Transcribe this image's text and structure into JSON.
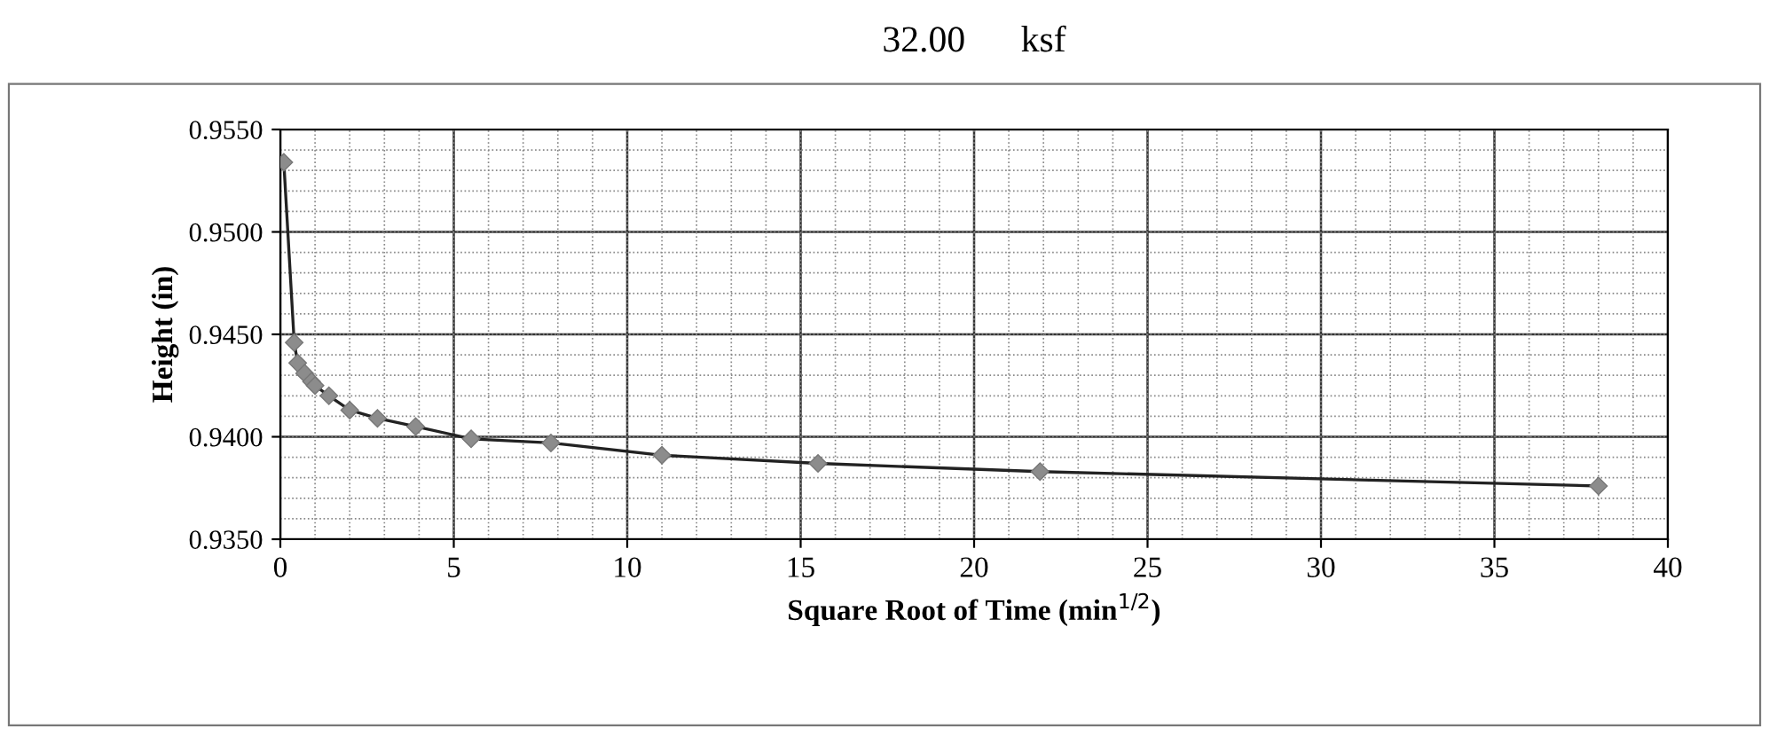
{
  "chart_data": {
    "type": "line",
    "title": "32.00      ksf",
    "xlabel": "Square Root of Time (min$^{1/2}$)",
    "ylabel": "Height (in)",
    "x": [
      0.1,
      0.4,
      0.5,
      0.7,
      0.9,
      1.0,
      1.4,
      2.0,
      2.8,
      3.9,
      5.5,
      7.8,
      11.0,
      15.5,
      21.9,
      38.0
    ],
    "series": [
      {
        "color": "#8c8c8c",
        "values": [
          0.9534,
          0.9446,
          0.9436,
          0.9431,
          0.9427,
          0.9425,
          0.942,
          0.9413,
          0.9409,
          0.9405,
          0.9399,
          0.9397,
          0.9391,
          0.9387,
          0.9383,
          0.9376
        ]
      }
    ],
    "xlim": [
      0,
      40
    ],
    "xticks": [
      0,
      5,
      10,
      15,
      20,
      25,
      30,
      35,
      40
    ],
    "ylim": [
      0.935,
      0.955
    ],
    "yticks": [
      {
        "value": 0.935,
        "label": "0.9350"
      },
      {
        "value": 0.94,
        "label": "0.9400"
      },
      {
        "value": 0.945,
        "label": "0.9450"
      },
      {
        "value": 0.95,
        "label": "0.9500"
      },
      {
        "value": 0.955,
        "label": "0.9550"
      }
    ],
    "grid": true,
    "marker": "diamond",
    "line_style": "solid",
    "legend": false
  }
}
